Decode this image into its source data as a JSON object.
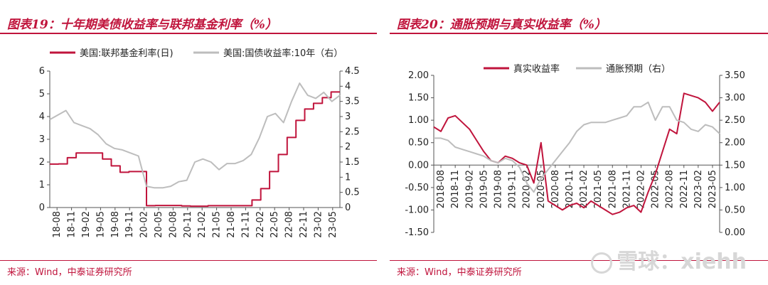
{
  "left": {
    "title": "图表19：十年期美债收益率与联邦基金利率（%）",
    "source": "来源：Wind，中泰证券研究所",
    "chart_data": {
      "type": "line",
      "legend_position": "top",
      "grid": false,
      "x_ticks": [
        "18-08",
        "18-11",
        "19-02",
        "19-05",
        "19-08",
        "19-11",
        "20-02",
        "20-05",
        "20-08",
        "20-11",
        "21-02",
        "21-05",
        "21-08",
        "21-11",
        "22-02",
        "22-05",
        "22-08",
        "22-11",
        "23-02",
        "23-05"
      ],
      "y_left": {
        "ticks": [
          "0",
          "1",
          "2",
          "3",
          "4",
          "5",
          "6"
        ],
        "range": [
          0,
          6
        ]
      },
      "y_right": {
        "ticks": [
          "0",
          "0.5",
          "1",
          "1.5",
          "2",
          "2.5",
          "3",
          "3.5",
          "4",
          "4.5"
        ],
        "range": [
          0,
          4.5
        ]
      },
      "series": [
        {
          "name": "美国:联邦基金利率(日)",
          "color": "#c0143c",
          "axis": "left",
          "style": "step",
          "values": [
            1.91,
            1.92,
            2.19,
            2.4,
            2.4,
            2.4,
            2.13,
            1.83,
            1.55,
            1.58,
            1.58,
            0.08,
            0.09,
            0.09,
            0.09,
            0.07,
            0.06,
            0.06,
            0.08,
            0.08,
            0.08,
            0.08,
            0.08,
            0.33,
            0.83,
            1.58,
            2.33,
            3.08,
            3.83,
            4.33,
            4.58,
            4.83,
            5.08,
            5.08
          ]
        },
        {
          "name": "美国:国债收益率:10年（右）",
          "color": "#bdbdbd",
          "axis": "right",
          "values": [
            2.9,
            3.05,
            3.2,
            2.8,
            2.7,
            2.6,
            2.4,
            2.1,
            1.95,
            1.9,
            1.8,
            1.7,
            0.7,
            0.65,
            0.65,
            0.7,
            0.85,
            0.9,
            1.5,
            1.6,
            1.5,
            1.25,
            1.45,
            1.45,
            1.55,
            1.75,
            2.3,
            3.0,
            3.1,
            2.8,
            3.5,
            4.1,
            3.7,
            3.6,
            3.8,
            3.5,
            3.7
          ]
        }
      ]
    }
  },
  "right": {
    "title": "图表20：通胀预期与真实收益率（%）",
    "source": "来源：Wind，中泰证券研究所",
    "chart_data": {
      "type": "line",
      "legend_position": "top",
      "grid": false,
      "x_ticks": [
        "2018-08",
        "2018-11",
        "2019-02",
        "2019-05",
        "2019-08",
        "2019-11",
        "2020-02",
        "2020-05",
        "2020-08",
        "2020-11",
        "2021-02",
        "2021-05",
        "2021-08",
        "2021-11",
        "2022-02",
        "2022-05",
        "2022-08",
        "2022-11",
        "2023-02",
        "2023-05"
      ],
      "y_left": {
        "ticks": [
          "-1.50",
          "-1.00",
          "-0.50",
          "0.00",
          "0.50",
          "1.00",
          "1.50",
          "2.00"
        ],
        "range": [
          -1.5,
          2.0
        ]
      },
      "y_right": {
        "ticks": [
          "0.00",
          "0.50",
          "1.00",
          "1.50",
          "2.00",
          "2.50",
          "3.00",
          "3.50"
        ],
        "range": [
          0,
          3.5
        ]
      },
      "series": [
        {
          "name": "真实收益率",
          "color": "#c0143c",
          "axis": "left",
          "values": [
            0.85,
            0.75,
            1.05,
            1.1,
            0.95,
            0.8,
            0.55,
            0.3,
            0.1,
            0.05,
            0.2,
            0.15,
            0.05,
            0.0,
            -0.4,
            0.5,
            -0.8,
            -0.9,
            -1.0,
            -0.9,
            -0.85,
            -0.95,
            -0.8,
            -0.9,
            -1.0,
            -1.1,
            -1.05,
            -0.95,
            -0.9,
            -1.05,
            -0.6,
            -0.2,
            0.3,
            0.8,
            0.7,
            1.6,
            1.55,
            1.5,
            1.4,
            1.2,
            1.4
          ]
        },
        {
          "name": "通胀预期（右）",
          "color": "#bdbdbd",
          "axis": "right",
          "values": [
            2.1,
            2.1,
            2.05,
            1.9,
            1.85,
            1.8,
            1.75,
            1.7,
            1.6,
            1.55,
            1.65,
            1.6,
            1.45,
            1.1,
            0.9,
            1.2,
            1.4,
            1.6,
            1.8,
            2.0,
            2.25,
            2.4,
            2.45,
            2.45,
            2.45,
            2.5,
            2.55,
            2.6,
            2.8,
            2.8,
            2.9,
            2.5,
            2.8,
            2.8,
            2.5,
            2.45,
            2.3,
            2.25,
            2.4,
            2.35,
            2.2
          ]
        }
      ]
    }
  },
  "watermark": {
    "text": "雪球：xiehh"
  }
}
